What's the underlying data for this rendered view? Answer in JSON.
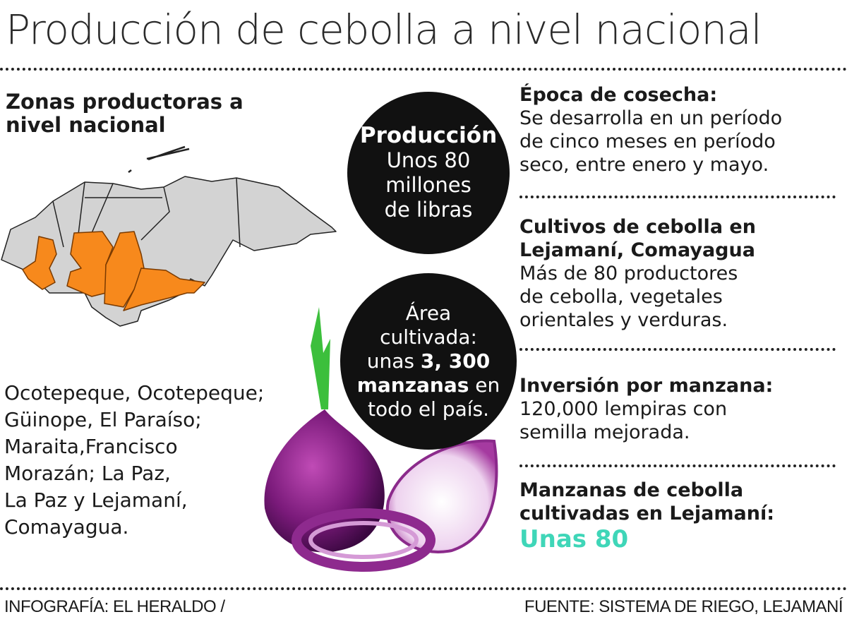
{
  "title": "Producción de cebolla a nivel nacional",
  "map": {
    "heading": "Zonas productoras a nivel nacional",
    "highlight_color": "#f7891c",
    "base_color": "#d3d3d3",
    "zones_text": [
      "Ocotepeque, Ocotepeque;",
      "Güinope, El Paraíso;",
      "Maraita,Francisco",
      "Morazán; La Paz,",
      "La Paz y Lejamaní,",
      "Comayagua."
    ]
  },
  "circles": {
    "production": {
      "title": "Producción",
      "lines": [
        "Unos 80",
        "millones",
        "de libras"
      ]
    },
    "area": {
      "lines_before": [
        "Área",
        "cultivada:"
      ],
      "prefix": "unas ",
      "bold1": "3, 300",
      "bold2": "manzanas",
      "suffix": " en",
      "last": "todo el país."
    }
  },
  "sections": [
    {
      "heading": "Época de cosecha:",
      "text": [
        "Se desarrolla en un período",
        "de cinco meses en período",
        "seco, entre  enero y mayo."
      ]
    },
    {
      "heading": "Cultivos de cebolla  en Lejamaní, Comayagua",
      "text": [
        "Más de 80 productores",
        "de cebolla, vegetales",
        "orientales y  verduras."
      ]
    },
    {
      "heading": "Inversión por manzana:",
      "text": [
        "120,000 lempiras con",
        "semilla mejorada."
      ]
    },
    {
      "heading": "Manzanas de cebolla cultivadas en Lejamaní:",
      "highlight": "Unas 80",
      "highlight_color": "#3fd6b8"
    }
  ],
  "footer": {
    "credit": "INFOGRAFÍA: EL HERALDO /",
    "source": "FUENTE: SISTEMA DE RIEGO, LEJAMANÍ"
  }
}
